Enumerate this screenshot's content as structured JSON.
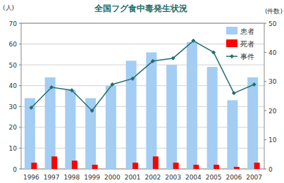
{
  "chart_data": {
    "type": "bar",
    "title": "全国フグ食中毒発生状況",
    "y_label": "(人)",
    "y2_label": "(件数)",
    "categories": [
      "1996",
      "1997",
      "1998",
      "1999",
      "2000",
      "2001",
      "2002",
      "2003",
      "2004",
      "2005",
      "2006",
      "2007"
    ],
    "series": [
      {
        "name": "患者",
        "type": "bar",
        "color": "#a3cdf2",
        "values": [
          34,
          44,
          38,
          34,
          40,
          52,
          56,
          50,
          61,
          49,
          33,
          44
        ]
      },
      {
        "name": "死者",
        "type": "bar",
        "color": "#ff0000",
        "values": [
          3,
          6,
          4,
          2,
          0,
          3,
          6,
          3,
          2,
          2,
          1,
          3
        ]
      },
      {
        "name": "事件",
        "type": "line",
        "axis": "y2",
        "marker": "diamond",
        "color": "#236e6e",
        "values": [
          21,
          28,
          27,
          20,
          29,
          31,
          37,
          38,
          44,
          40,
          26,
          29
        ]
      }
    ],
    "ylim": [
      0,
      70
    ],
    "yticks": [
      0,
      10,
      20,
      30,
      40,
      50,
      60,
      70
    ],
    "y2lim": [
      0,
      50
    ],
    "y2ticks": [
      0,
      10,
      20,
      30,
      40,
      50
    ],
    "grid": true,
    "legend": "top-right"
  }
}
